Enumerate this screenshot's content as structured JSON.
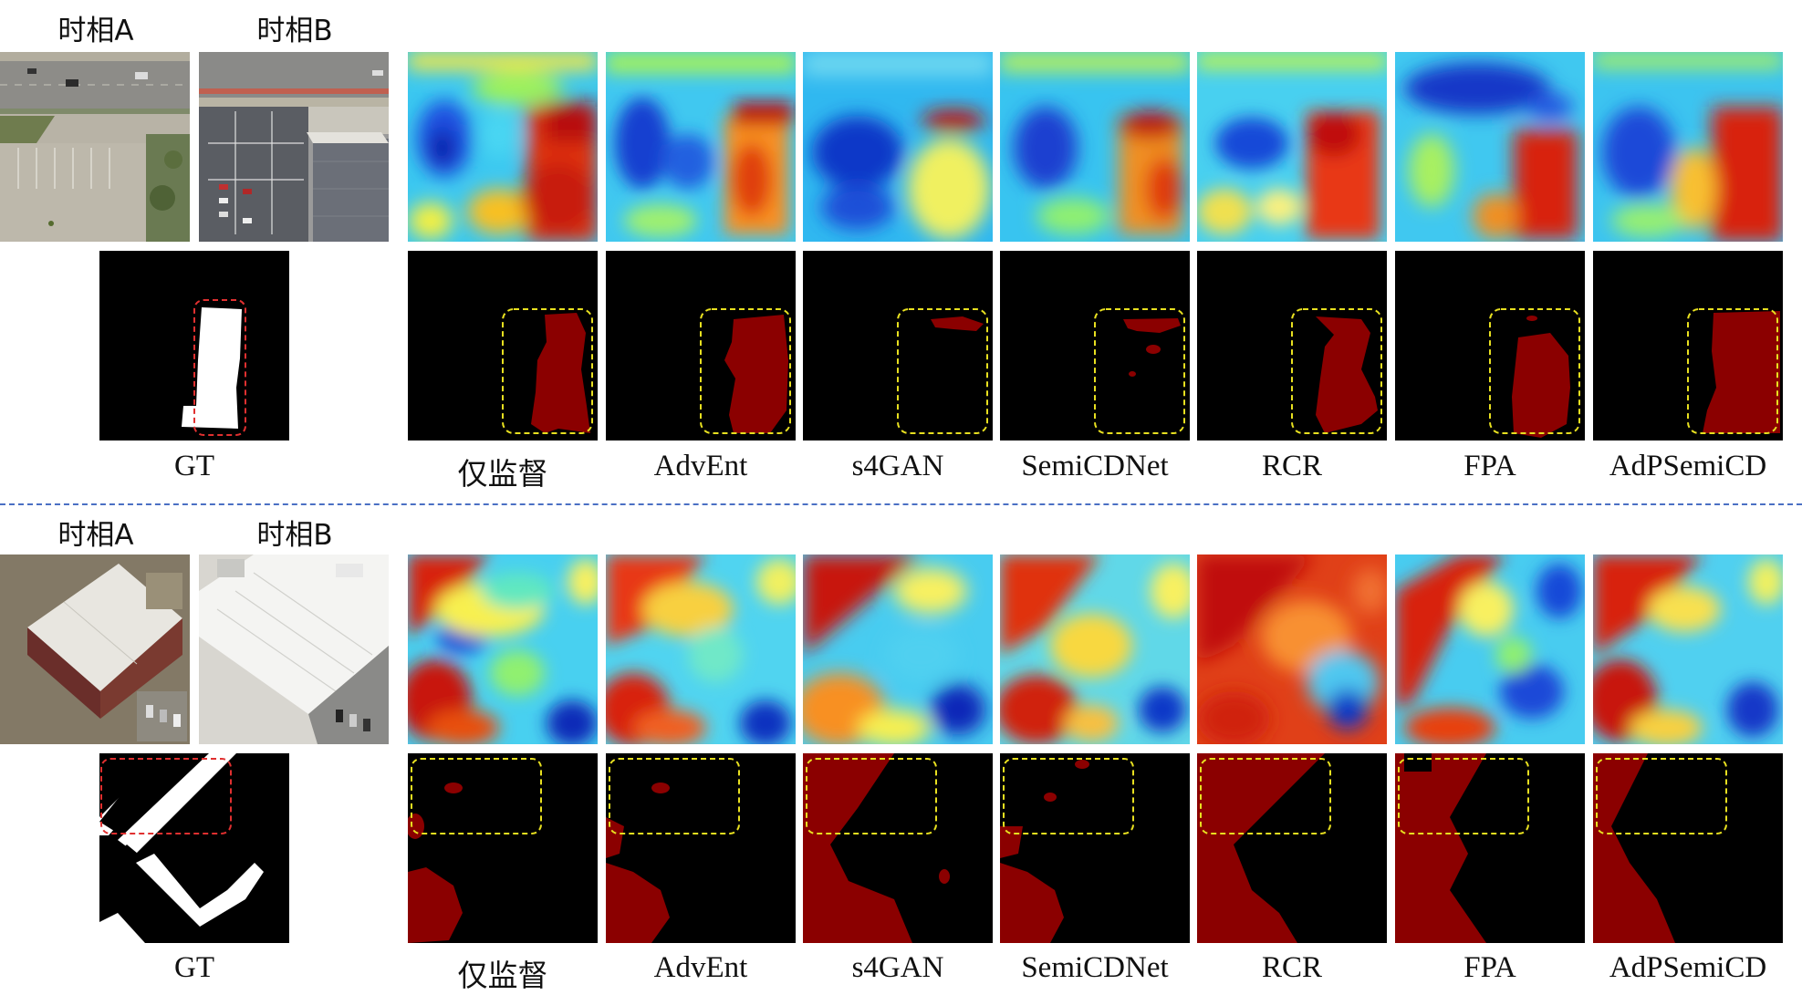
{
  "groups": [
    {
      "time_a_label": "时相A",
      "time_b_label": "时相B",
      "gt_label": "GT",
      "methods": [
        "仅监督",
        "AdvEnt",
        "s4GAN",
        "SemiCDNet",
        "RCR",
        "FPA",
        "AdPSemiCD"
      ]
    },
    {
      "time_a_label": "时相A",
      "time_b_label": "时相B",
      "gt_label": "GT",
      "methods": [
        "仅监督",
        "AdvEnt",
        "s4GAN",
        "SemiCDNet",
        "RCR",
        "FPA",
        "AdPSemiCD"
      ]
    }
  ],
  "colors": {
    "change_mask": "#8b0000",
    "gt_box": "#e03030",
    "pred_box": "#e8e020",
    "divider": "#4a6fc4"
  }
}
